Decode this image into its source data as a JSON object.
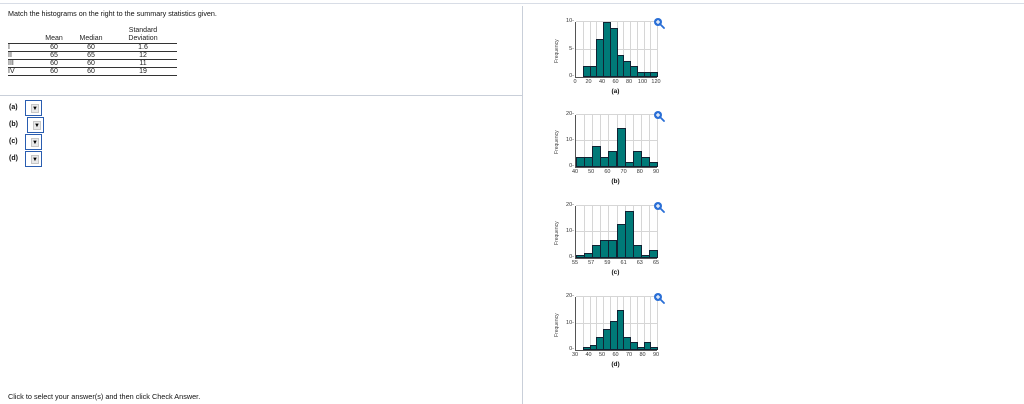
{
  "prompt": "Match the histograms on the right to the summary statistics given.",
  "table": {
    "headers": [
      "",
      "Mean",
      "Median",
      "Standard Deviation"
    ],
    "header_sd_line1": "Standard",
    "header_sd_line2": "Deviation",
    "rows": [
      {
        "label": "I",
        "mean": "60",
        "median": "60",
        "sd": "1.6"
      },
      {
        "label": "II",
        "mean": "65",
        "median": "65",
        "sd": "12"
      },
      {
        "label": "III",
        "mean": "60",
        "median": "60",
        "sd": "11"
      },
      {
        "label": "IV",
        "mean": "60",
        "median": "60",
        "sd": "19"
      }
    ]
  },
  "answers": [
    {
      "label": "(a)",
      "selected": "",
      "arrow": "▼"
    },
    {
      "label": "(b)",
      "selected": "",
      "arrow": "▼"
    },
    {
      "label": "(c)",
      "selected": "",
      "arrow": "▼"
    },
    {
      "label": "(d)",
      "selected": "",
      "arrow": "▼"
    }
  ],
  "footer": "Click to select your answer(s) and then click Check Answer.",
  "icons": {
    "zoom": "zoom-in-icon"
  },
  "colors": {
    "bar": "#007a78",
    "accent": "#2a5db0"
  },
  "chart_data": [
    {
      "type": "bar",
      "title": "(a)",
      "xlabel": "",
      "ylabel": "Frequency",
      "xlim": [
        0,
        120
      ],
      "ylim": [
        0,
        10
      ],
      "bin_width": 10,
      "x_ticks": [
        "0",
        "20",
        "40",
        "60",
        "80",
        "100",
        "120"
      ],
      "y_ticks": [
        "0",
        "5",
        "10"
      ],
      "bins": [
        10,
        20,
        30,
        40,
        50,
        60,
        70,
        80,
        90,
        100,
        110
      ],
      "values": [
        2,
        2,
        7,
        10,
        9,
        4,
        3,
        2,
        1,
        1,
        1
      ]
    },
    {
      "type": "bar",
      "title": "(b)",
      "xlabel": "",
      "ylabel": "Frequency",
      "xlim": [
        40,
        90
      ],
      "ylim": [
        0,
        20
      ],
      "bin_width": 5,
      "x_ticks": [
        "40",
        "50",
        "60",
        "70",
        "80",
        "90"
      ],
      "y_ticks": [
        "0",
        "10",
        "20"
      ],
      "bins": [
        40,
        45,
        50,
        55,
        60,
        65,
        70,
        75,
        80,
        85
      ],
      "values": [
        4,
        4,
        8,
        4,
        6,
        15,
        2,
        6,
        4,
        2
      ]
    },
    {
      "type": "bar",
      "title": "(c)",
      "xlabel": "",
      "ylabel": "Frequency",
      "xlim": [
        55,
        65
      ],
      "ylim": [
        0,
        20
      ],
      "bin_width": 1,
      "x_ticks": [
        "55",
        "57",
        "59",
        "61",
        "63",
        "65"
      ],
      "y_ticks": [
        "0",
        "10",
        "20"
      ],
      "bins": [
        55,
        56,
        57,
        58,
        59,
        60,
        61,
        62,
        63,
        64
      ],
      "values": [
        1,
        2,
        5,
        7,
        7,
        13,
        18,
        5,
        1,
        3
      ]
    },
    {
      "type": "bar",
      "title": "(d)",
      "xlabel": "",
      "ylabel": "Frequency",
      "xlim": [
        30,
        90
      ],
      "ylim": [
        0,
        20
      ],
      "bin_width": 5,
      "x_ticks": [
        "30",
        "40",
        "50",
        "60",
        "70",
        "80",
        "90"
      ],
      "y_ticks": [
        "0",
        "10",
        "20"
      ],
      "bins": [
        35,
        40,
        45,
        50,
        55,
        60,
        65,
        70,
        75,
        80,
        85
      ],
      "values": [
        1,
        2,
        5,
        8,
        11,
        15,
        5,
        3,
        1,
        3,
        1
      ]
    }
  ]
}
